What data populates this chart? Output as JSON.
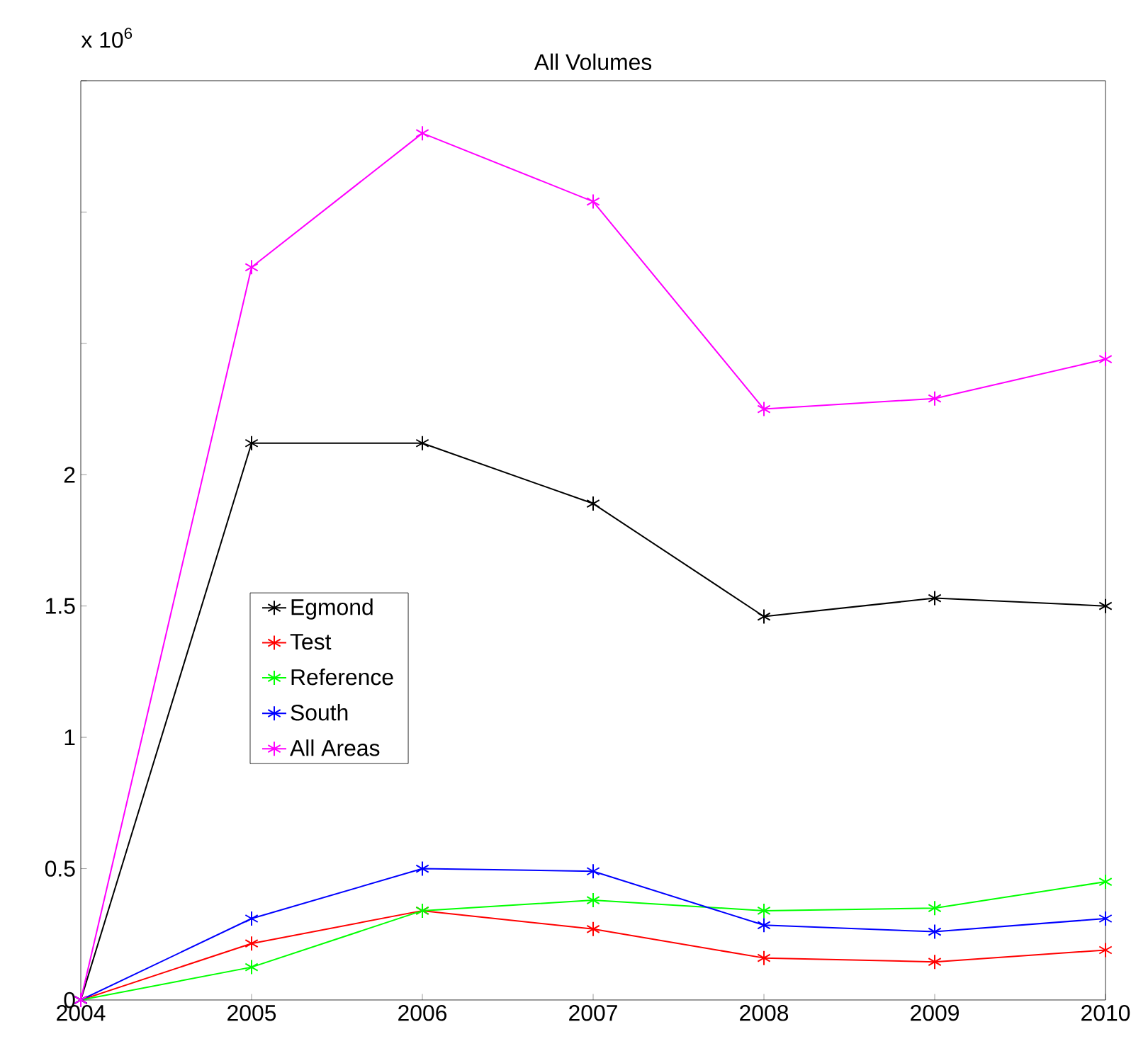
{
  "chart_data": {
    "type": "line",
    "title": "All Volumes",
    "annotations": [
      "x 10$^{6}$"
    ],
    "x": [
      2004,
      2005,
      2006,
      2007,
      2008,
      2009,
      2010
    ],
    "xlim": [
      2004,
      2010
    ],
    "xticks": [
      2004,
      2005,
      2006,
      2007,
      2008,
      2009,
      2010
    ],
    "ylim": [
      0,
      3.5
    ],
    "yticks": [
      0,
      0.5,
      1,
      1.5,
      2,
      {
        "value": 2.5,
        "label": null
      },
      {
        "value": 3,
        "label": null
      },
      {
        "value": 3.5,
        "label": null
      }
    ],
    "marker": "cross",
    "line_style": "solid",
    "grid": false,
    "legend": "left",
    "series": [
      {
        "name": "Egmond",
        "color": "#000000",
        "values": [
          0,
          2.12,
          2.12,
          1.89,
          1.46,
          1.53,
          1.5
        ]
      },
      {
        "name": "Test",
        "color": "#ff0000",
        "values": [
          0,
          0.215,
          0.34,
          0.27,
          0.16,
          0.145,
          0.19
        ]
      },
      {
        "name": "Reference",
        "color": "#00ff00",
        "values": [
          0,
          0.125,
          0.34,
          0.38,
          0.34,
          0.35,
          0.45
        ]
      },
      {
        "name": "South",
        "color": "#0000ff",
        "values": [
          0,
          0.31,
          0.5,
          0.49,
          0.285,
          0.26,
          0.31
        ]
      },
      {
        "name": "All Areas",
        "color": "#ff00ff",
        "values": [
          0,
          2.79,
          3.3,
          3.04,
          2.25,
          2.29,
          2.44
        ]
      }
    ]
  }
}
